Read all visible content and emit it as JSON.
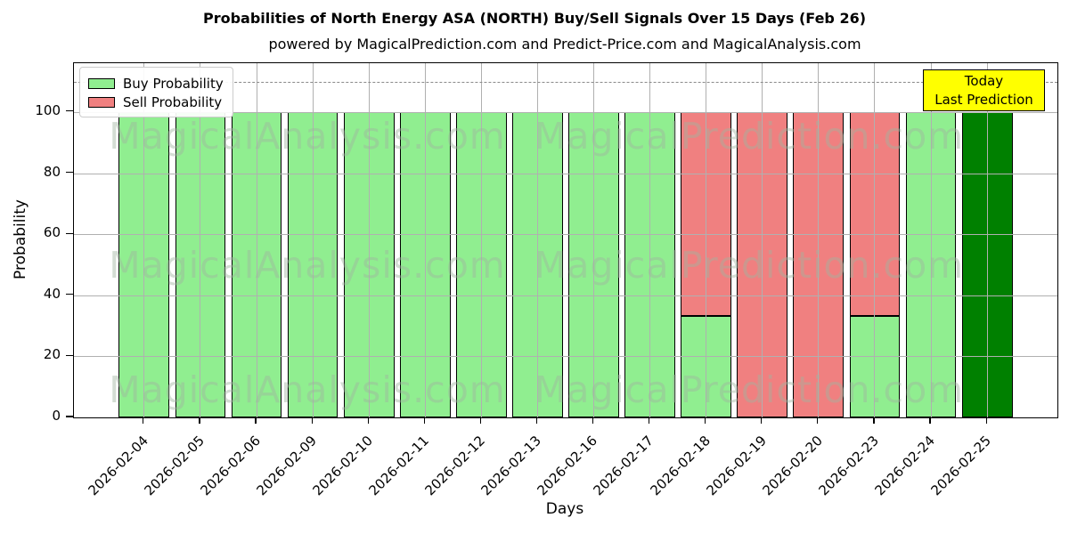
{
  "chart": {
    "title": "Probabilities of North Energy ASA (NORTH) Buy/Sell Signals Over 15 Days (Feb 26)",
    "subtitle": "powered by MagicalPrediction.com and Predict-Price.com and MagicalAnalysis.com",
    "xlabel": "Days",
    "ylabel": "Probability",
    "legend": [
      {
        "label": "Buy Probability",
        "color": "#90ee90"
      },
      {
        "label": "Sell Probability",
        "color": "#f08080"
      }
    ],
    "annotation_box": {
      "lines": [
        "Today",
        "Last Prediction"
      ],
      "bg": "#ffff00"
    },
    "watermarks": [
      "MagicalAnalysis.com",
      "MagicalPrediction.com"
    ]
  },
  "chart_data": {
    "type": "bar",
    "stacked": true,
    "title": "Probabilities of North Energy ASA (NORTH) Buy/Sell Signals Over 15 Days (Feb 26)",
    "xlabel": "Days",
    "ylabel": "Probability",
    "categories": [
      "2026-02-04",
      "2026-02-05",
      "2026-02-06",
      "2026-02-09",
      "2026-02-10",
      "2026-02-11",
      "2026-02-12",
      "2026-02-13",
      "2026-02-16",
      "2026-02-17",
      "2026-02-18",
      "2026-02-19",
      "2026-02-20",
      "2026-02-23",
      "2026-02-24",
      "2026-02-25"
    ],
    "series": [
      {
        "name": "Buy Probability",
        "color": "#90ee90",
        "values": [
          100,
          100,
          100,
          100,
          100,
          100,
          100,
          100,
          100,
          100,
          33.33,
          0,
          0,
          33.33,
          100,
          100
        ]
      },
      {
        "name": "Sell Probability",
        "color": "#f08080",
        "values": [
          0,
          0,
          0,
          0,
          0,
          0,
          0,
          0,
          0,
          0,
          66.67,
          100,
          100,
          66.67,
          0,
          0
        ]
      }
    ],
    "today_bar": {
      "index": 15,
      "color": "#008000",
      "note": "Today / Last Prediction bar drawn dark green"
    },
    "yticks": [
      0,
      20,
      40,
      60,
      80,
      100
    ],
    "ylim": [
      0,
      116
    ],
    "dashed_line_y": 110,
    "grid": true,
    "legend_position": "upper left",
    "bar_edge_color": "#000000"
  }
}
